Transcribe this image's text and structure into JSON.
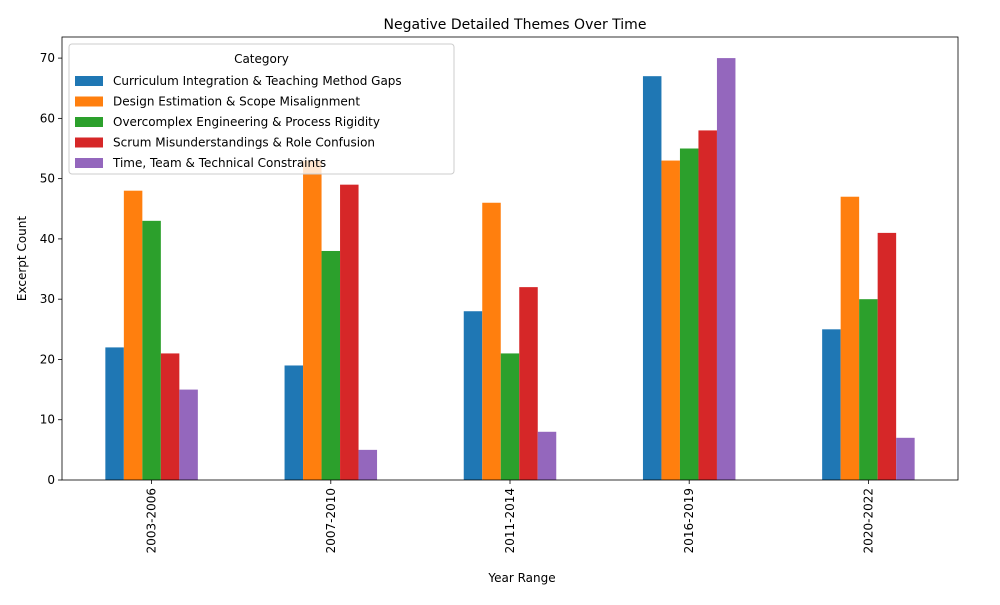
{
  "chart_data": {
    "type": "bar",
    "title": "Negative Detailed Themes Over Time",
    "xlabel": "Year Range",
    "ylabel": "Excerpt Count",
    "categories": [
      "2003-2006",
      "2007-2010",
      "2011-2014",
      "2016-2019",
      "2020-2022"
    ],
    "ylim": [
      0,
      73.5
    ],
    "yticks": [
      0,
      10,
      20,
      30,
      40,
      50,
      60,
      70
    ],
    "grid": false,
    "legend": {
      "title": "Category",
      "placement": "top-left"
    },
    "series": [
      {
        "name": "Curriculum Integration & Teaching Method Gaps",
        "color": "#1f77b4",
        "values": [
          22,
          19,
          28,
          67,
          25
        ]
      },
      {
        "name": "Design Estimation & Scope Misalignment",
        "color": "#ff7f0e",
        "values": [
          48,
          53,
          46,
          53,
          47
        ]
      },
      {
        "name": "Overcomplex Engineering & Process Rigidity",
        "color": "#2ca02c",
        "values": [
          43,
          38,
          21,
          55,
          30
        ]
      },
      {
        "name": "Scrum Misunderstandings & Role Confusion",
        "color": "#d62728",
        "values": [
          21,
          49,
          32,
          58,
          41
        ]
      },
      {
        "name": "Time, Team & Technical Constraints",
        "color": "#9467bd",
        "values": [
          15,
          5,
          8,
          70,
          7
        ]
      }
    ]
  }
}
